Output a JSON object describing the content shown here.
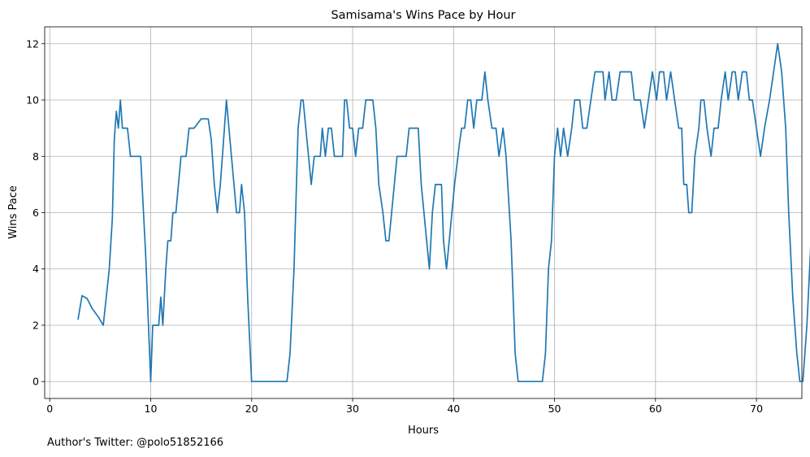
{
  "chart_data": {
    "type": "line",
    "title": "Samisama's Wins Pace by Hour",
    "xlabel": "Hours",
    "ylabel": "Wins Pace",
    "xlim": [
      -0.5,
      74.5
    ],
    "ylim": [
      -0.6,
      12.6
    ],
    "xticks": [
      0,
      10,
      20,
      30,
      40,
      50,
      60,
      70
    ],
    "yticks": [
      0,
      2,
      4,
      6,
      8,
      10,
      12
    ],
    "grid": true,
    "series": [
      {
        "color": "#1f77b4",
        "points": [
          [
            2.8,
            2.2
          ],
          [
            3.2,
            3.05
          ],
          [
            3.7,
            2.95
          ],
          [
            4.2,
            2.6
          ],
          [
            4.8,
            2.3
          ],
          [
            5.3,
            2.0
          ],
          [
            5.9,
            4.0
          ],
          [
            6.2,
            5.8
          ],
          [
            6.4,
            8.6
          ],
          [
            6.6,
            9.6
          ],
          [
            6.8,
            9.0
          ],
          [
            7.0,
            10.0
          ],
          [
            7.2,
            9.0
          ],
          [
            7.7,
            9.0
          ],
          [
            8.0,
            8.0
          ],
          [
            9.0,
            8.0
          ],
          [
            9.5,
            4.5
          ],
          [
            10.0,
            0.0
          ],
          [
            10.2,
            2.0
          ],
          [
            10.8,
            2.0
          ],
          [
            11.0,
            3.0
          ],
          [
            11.2,
            2.0
          ],
          [
            11.5,
            4.0
          ],
          [
            11.7,
            5.0
          ],
          [
            12.0,
            5.0
          ],
          [
            12.2,
            6.0
          ],
          [
            12.5,
            6.0
          ],
          [
            13.0,
            8.0
          ],
          [
            13.5,
            8.0
          ],
          [
            13.8,
            9.0
          ],
          [
            14.3,
            9.0
          ],
          [
            15.0,
            9.33
          ],
          [
            15.7,
            9.33
          ],
          [
            16.0,
            8.6
          ],
          [
            16.3,
            7.0
          ],
          [
            16.6,
            6.0
          ],
          [
            16.9,
            7.0
          ],
          [
            17.2,
            8.5
          ],
          [
            17.5,
            10.0
          ],
          [
            18.0,
            8.0
          ],
          [
            18.5,
            6.0
          ],
          [
            18.8,
            6.0
          ],
          [
            19.0,
            7.0
          ],
          [
            19.3,
            6.0
          ],
          [
            19.6,
            3.0
          ],
          [
            20.0,
            0.0
          ],
          [
            23.5,
            0.0
          ],
          [
            23.8,
            1.0
          ],
          [
            24.2,
            4.0
          ],
          [
            24.6,
            9.0
          ],
          [
            24.9,
            10.0
          ],
          [
            25.1,
            10.0
          ],
          [
            25.5,
            8.5
          ],
          [
            25.9,
            7.0
          ],
          [
            26.2,
            8.0
          ],
          [
            26.8,
            8.0
          ],
          [
            27.0,
            9.0
          ],
          [
            27.3,
            8.0
          ],
          [
            27.6,
            9.0
          ],
          [
            27.9,
            9.0
          ],
          [
            28.2,
            8.0
          ],
          [
            29.0,
            8.0
          ],
          [
            29.2,
            10.0
          ],
          [
            29.4,
            10.0
          ],
          [
            29.7,
            9.0
          ],
          [
            30.0,
            9.0
          ],
          [
            30.3,
            8.0
          ],
          [
            30.6,
            9.0
          ],
          [
            31.0,
            9.0
          ],
          [
            31.3,
            10.0
          ],
          [
            32.0,
            10.0
          ],
          [
            32.3,
            9.0
          ],
          [
            32.6,
            7.0
          ],
          [
            33.0,
            6.0
          ],
          [
            33.3,
            5.0
          ],
          [
            33.6,
            5.0
          ],
          [
            34.0,
            6.5
          ],
          [
            34.4,
            8.0
          ],
          [
            35.3,
            8.0
          ],
          [
            35.6,
            9.0
          ],
          [
            36.5,
            9.0
          ],
          [
            36.8,
            7.0
          ],
          [
            37.2,
            5.5
          ],
          [
            37.6,
            4.0
          ],
          [
            37.9,
            6.0
          ],
          [
            38.2,
            7.0
          ],
          [
            38.8,
            7.0
          ],
          [
            39.0,
            5.0
          ],
          [
            39.3,
            4.0
          ],
          [
            39.7,
            5.5
          ],
          [
            40.1,
            7.0
          ],
          [
            40.6,
            8.5
          ],
          [
            40.8,
            9.0
          ],
          [
            41.1,
            9.0
          ],
          [
            41.4,
            10.0
          ],
          [
            41.7,
            10.0
          ],
          [
            42.0,
            9.0
          ],
          [
            42.3,
            10.0
          ],
          [
            42.8,
            10.0
          ],
          [
            43.1,
            11.0
          ],
          [
            43.4,
            10.0
          ],
          [
            43.8,
            9.0
          ],
          [
            44.2,
            9.0
          ],
          [
            44.5,
            8.0
          ],
          [
            44.9,
            9.0
          ],
          [
            45.2,
            8.0
          ],
          [
            45.7,
            5.0
          ],
          [
            46.1,
            1.0
          ],
          [
            46.4,
            0.0
          ],
          [
            48.8,
            0.0
          ],
          [
            49.1,
            1.0
          ],
          [
            49.4,
            4.0
          ],
          [
            49.7,
            5.0
          ],
          [
            50.0,
            8.0
          ],
          [
            50.3,
            9.0
          ],
          [
            50.6,
            8.0
          ],
          [
            50.9,
            9.0
          ],
          [
            51.3,
            8.0
          ],
          [
            51.7,
            9.0
          ],
          [
            52.0,
            10.0
          ],
          [
            52.5,
            10.0
          ],
          [
            52.8,
            9.0
          ],
          [
            53.2,
            9.0
          ],
          [
            53.6,
            10.0
          ],
          [
            54.0,
            11.0
          ],
          [
            54.8,
            11.0
          ],
          [
            55.0,
            10.0
          ],
          [
            55.4,
            11.0
          ],
          [
            55.7,
            10.0
          ],
          [
            56.1,
            10.0
          ],
          [
            56.5,
            11.0
          ],
          [
            57.6,
            11.0
          ],
          [
            57.9,
            10.0
          ],
          [
            58.5,
            10.0
          ],
          [
            58.9,
            9.0
          ],
          [
            59.3,
            10.0
          ],
          [
            59.7,
            11.0
          ],
          [
            60.1,
            10.0
          ],
          [
            60.4,
            11.0
          ],
          [
            60.8,
            11.0
          ],
          [
            61.1,
            10.0
          ],
          [
            61.5,
            11.0
          ],
          [
            61.9,
            10.0
          ],
          [
            62.3,
            9.0
          ],
          [
            62.6,
            9.0
          ],
          [
            62.8,
            7.0
          ],
          [
            63.1,
            7.0
          ],
          [
            63.3,
            6.0
          ],
          [
            63.6,
            6.0
          ],
          [
            63.9,
            8.0
          ],
          [
            64.3,
            9.0
          ],
          [
            64.5,
            10.0
          ],
          [
            64.8,
            10.0
          ],
          [
            65.1,
            9.0
          ],
          [
            65.5,
            8.0
          ],
          [
            65.8,
            9.0
          ],
          [
            66.2,
            9.0
          ],
          [
            66.5,
            10.0
          ],
          [
            66.9,
            11.0
          ],
          [
            67.2,
            10.0
          ],
          [
            67.6,
            11.0
          ],
          [
            67.9,
            11.0
          ],
          [
            68.2,
            10.0
          ],
          [
            68.6,
            11.0
          ],
          [
            69.0,
            11.0
          ],
          [
            69.3,
            10.0
          ],
          [
            69.6,
            10.0
          ],
          [
            70.0,
            9.0
          ],
          [
            70.4,
            8.0
          ],
          [
            70.8,
            9.0
          ],
          [
            71.3,
            10.0
          ],
          [
            71.7,
            11.0
          ],
          [
            72.1,
            12.0
          ],
          [
            72.5,
            11.0
          ],
          [
            72.9,
            9.0
          ],
          [
            73.2,
            6.0
          ],
          [
            73.6,
            3.0
          ],
          [
            74.0,
            1.0
          ],
          [
            74.3,
            0.0
          ],
          [
            74.6,
            0.0
          ],
          [
            75.0,
            2.0
          ],
          [
            75.4,
            5.0
          ],
          [
            75.8,
            8.0
          ],
          [
            76.1,
            11.0
          ],
          [
            76.5,
            12.0
          ],
          [
            77.5,
            12.0
          ],
          [
            77.8,
            11.0
          ],
          [
            78.5,
            11.0
          ]
        ]
      }
    ]
  },
  "credit": "Author's Twitter: @polo51852166"
}
